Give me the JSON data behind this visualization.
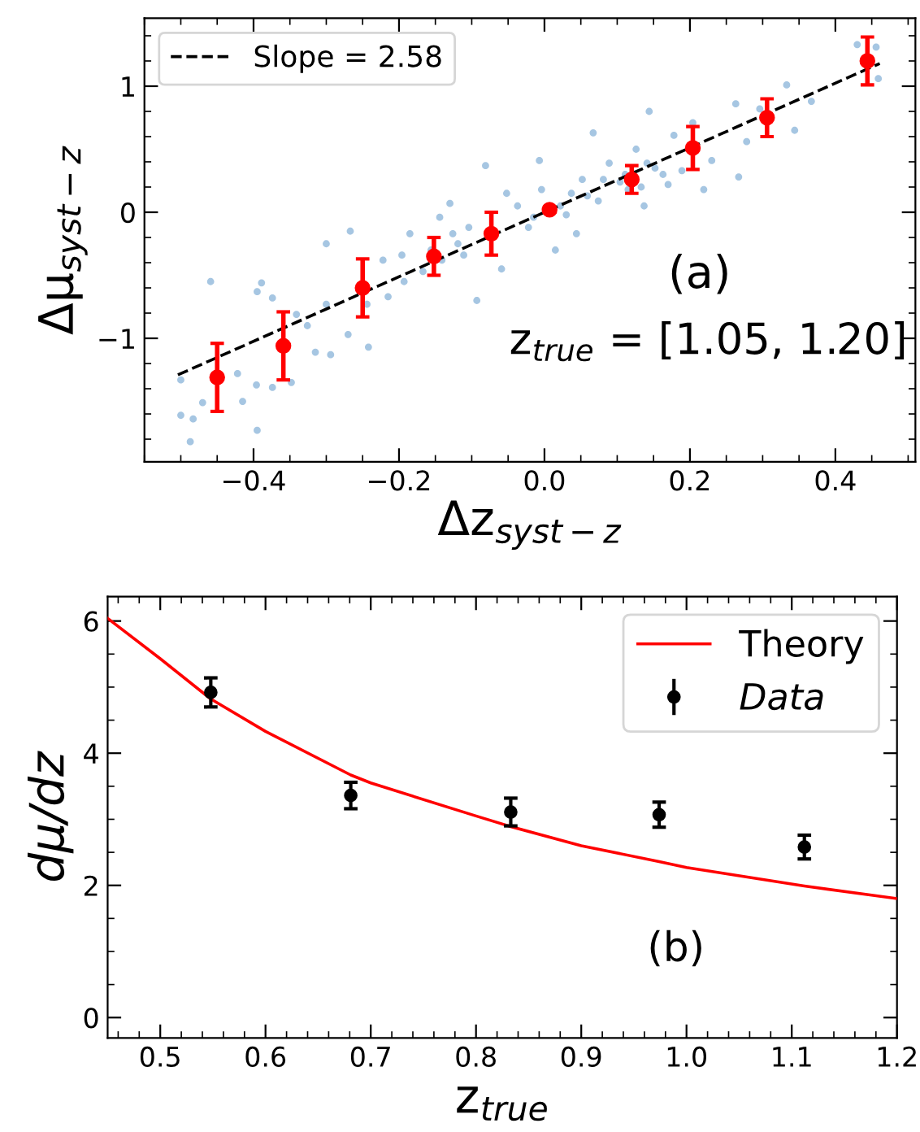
{
  "chart_data": [
    {
      "type": "scatter",
      "xlabel": "Δz$_{syst−z}$",
      "ylabel": "Δμ$_{syst−z}$",
      "xlim": [
        -0.55,
        0.51
      ],
      "ylim": [
        -1.98,
        1.54
      ],
      "xticks": [
        {
          "value": -0.4,
          "label": "−0.4"
        },
        {
          "value": -0.2,
          "label": "−0.2"
        },
        {
          "value": 0,
          "label": "0.0"
        },
        {
          "value": 0.2,
          "label": "0.2"
        },
        {
          "value": 0.4,
          "label": "0.4"
        }
      ],
      "yticks": [
        {
          "value": -1,
          "label": "−1"
        },
        0,
        1
      ],
      "grid": false,
      "legend": "top left",
      "annotations": [
        "(a)",
        "z$_{true}$ = [1.05, 1.20]"
      ],
      "series": [
        {
          "color": "#a6c6e2",
          "marker": "circle",
          "x": [
            -0.5,
            -0.5,
            -0.487,
            -0.483,
            -0.459,
            -0.47,
            -0.395,
            -0.415,
            -0.396,
            -0.422,
            -0.389,
            -0.395,
            -0.374,
            -0.348,
            -0.374,
            -0.341,
            -0.294,
            -0.315,
            -0.326,
            -0.3,
            -0.27,
            -0.242,
            -0.267,
            -0.3,
            -0.244,
            -0.215,
            -0.222,
            -0.193,
            -0.185,
            -0.167,
            -0.144,
            -0.141,
            -0.13,
            -0.119,
            -0.104,
            -0.093,
            -0.081,
            -0.059,
            -0.052,
            -0.037,
            -0.022,
            -0.007,
            -0.004,
            0.015,
            0.022,
            0.037,
            0.044,
            0.052,
            0.067,
            0.074,
            0.089,
            0.104,
            0.115,
            0.126,
            0.137,
            0.144,
            0.152,
            0.17,
            0.178,
            0.189,
            0.204,
            0.219,
            0.23,
            0.263,
            0.267,
            0.278,
            0.296,
            0.333,
            0.344,
            0.367,
            0.459,
            0.456,
            0.43,
            -0.015,
            0.03,
            0.059,
            0.081,
            0.111,
            0.133,
            0.163,
            0.141,
            -0.126,
            -0.111,
            -0.156,
            -0.196
          ],
          "values": [
            -1.33,
            -1.61,
            -1.82,
            -1.64,
            -0.55,
            -1.51,
            -1.73,
            -1.5,
            -1.37,
            -1.28,
            -0.56,
            -0.63,
            -1.39,
            -1.35,
            -0.68,
            -0.81,
            -1.13,
            -1.11,
            -0.9,
            -0.73,
            -0.97,
            -1.07,
            -0.15,
            -0.25,
            -0.73,
            -0.67,
            -0.38,
            -0.55,
            -0.17,
            -0.47,
            -0.04,
            -0.38,
            0.07,
            -0.25,
            -0.12,
            -0.7,
            0.37,
            -0.45,
            0.15,
            0.05,
            -0.12,
            0.41,
            0.18,
            -0.3,
            0.05,
            0.15,
            -0.17,
            0.26,
            0.63,
            0.09,
            0.39,
            0.24,
            0.18,
            0.5,
            0.05,
            0.8,
            0.35,
            0.22,
            0.61,
            0.33,
            0.71,
            0.18,
            0.41,
            0.86,
            0.28,
            0.56,
            0.82,
            1.01,
            0.65,
            0.88,
            1.06,
            1.31,
            1.33,
            -0.04,
            -0.02,
            0.13,
            0.26,
            0.3,
            0.2,
            0.3,
            0.39,
            -0.17,
            -0.34,
            -0.3,
            -0.34
          ]
        },
        {
          "type": "line",
          "name": "Slope = 2.58",
          "color": "#000000",
          "line_style": "dashed",
          "marker": "none",
          "x": [
            -0.504,
            0.461
          ],
          "values": [
            -1.29,
            1.18
          ]
        },
        {
          "color": "#ff0000",
          "marker": "circle",
          "x": [
            -0.45,
            -0.359,
            -0.25,
            -0.152,
            -0.073,
            0.007,
            0.12,
            0.204,
            0.306,
            0.444
          ],
          "values": [
            -1.31,
            -1.06,
            -0.6,
            -0.35,
            -0.17,
            0.02,
            0.26,
            0.51,
            0.75,
            1.2
          ],
          "errors": [
            0.27,
            0.27,
            0.23,
            0.15,
            0.17,
            0.02,
            0.11,
            0.17,
            0.15,
            0.19
          ]
        }
      ]
    },
    {
      "type": "line",
      "xlabel": "z$_{true}$",
      "ylabel": "dμ/dz",
      "xlim": [
        0.45,
        1.2
      ],
      "ylim": [
        -0.31,
        6.37
      ],
      "xticks": [
        0.5,
        0.6,
        0.7,
        0.8,
        0.9,
        {
          "value": 1.0,
          "label": "1.0"
        },
        1.1,
        1.2
      ],
      "yticks": [
        0,
        2,
        4,
        6
      ],
      "grid": false,
      "legend": "top right",
      "annotations": [
        "(b)"
      ],
      "series": [
        {
          "name": "Theory",
          "color": "#ff0000",
          "marker": "none",
          "line_style": "solid",
          "x": [
            0.45,
            0.5,
            0.548,
            0.6,
            0.681,
            0.7,
            0.8,
            0.833,
            0.9,
            0.974,
            1.0,
            1.112,
            1.2
          ],
          "values": [
            6.04,
            5.43,
            4.82,
            4.33,
            3.67,
            3.55,
            3.05,
            2.89,
            2.6,
            2.36,
            2.27,
            1.99,
            1.8
          ]
        },
        {
          "type": "scatter",
          "name": "Data",
          "color": "#000000",
          "marker": "circle",
          "x": [
            0.548,
            0.681,
            0.833,
            0.974,
            1.112
          ],
          "values": [
            4.92,
            3.36,
            3.11,
            3.07,
            2.58
          ],
          "errors": [
            0.22,
            0.2,
            0.21,
            0.19,
            0.18
          ]
        }
      ]
    }
  ]
}
